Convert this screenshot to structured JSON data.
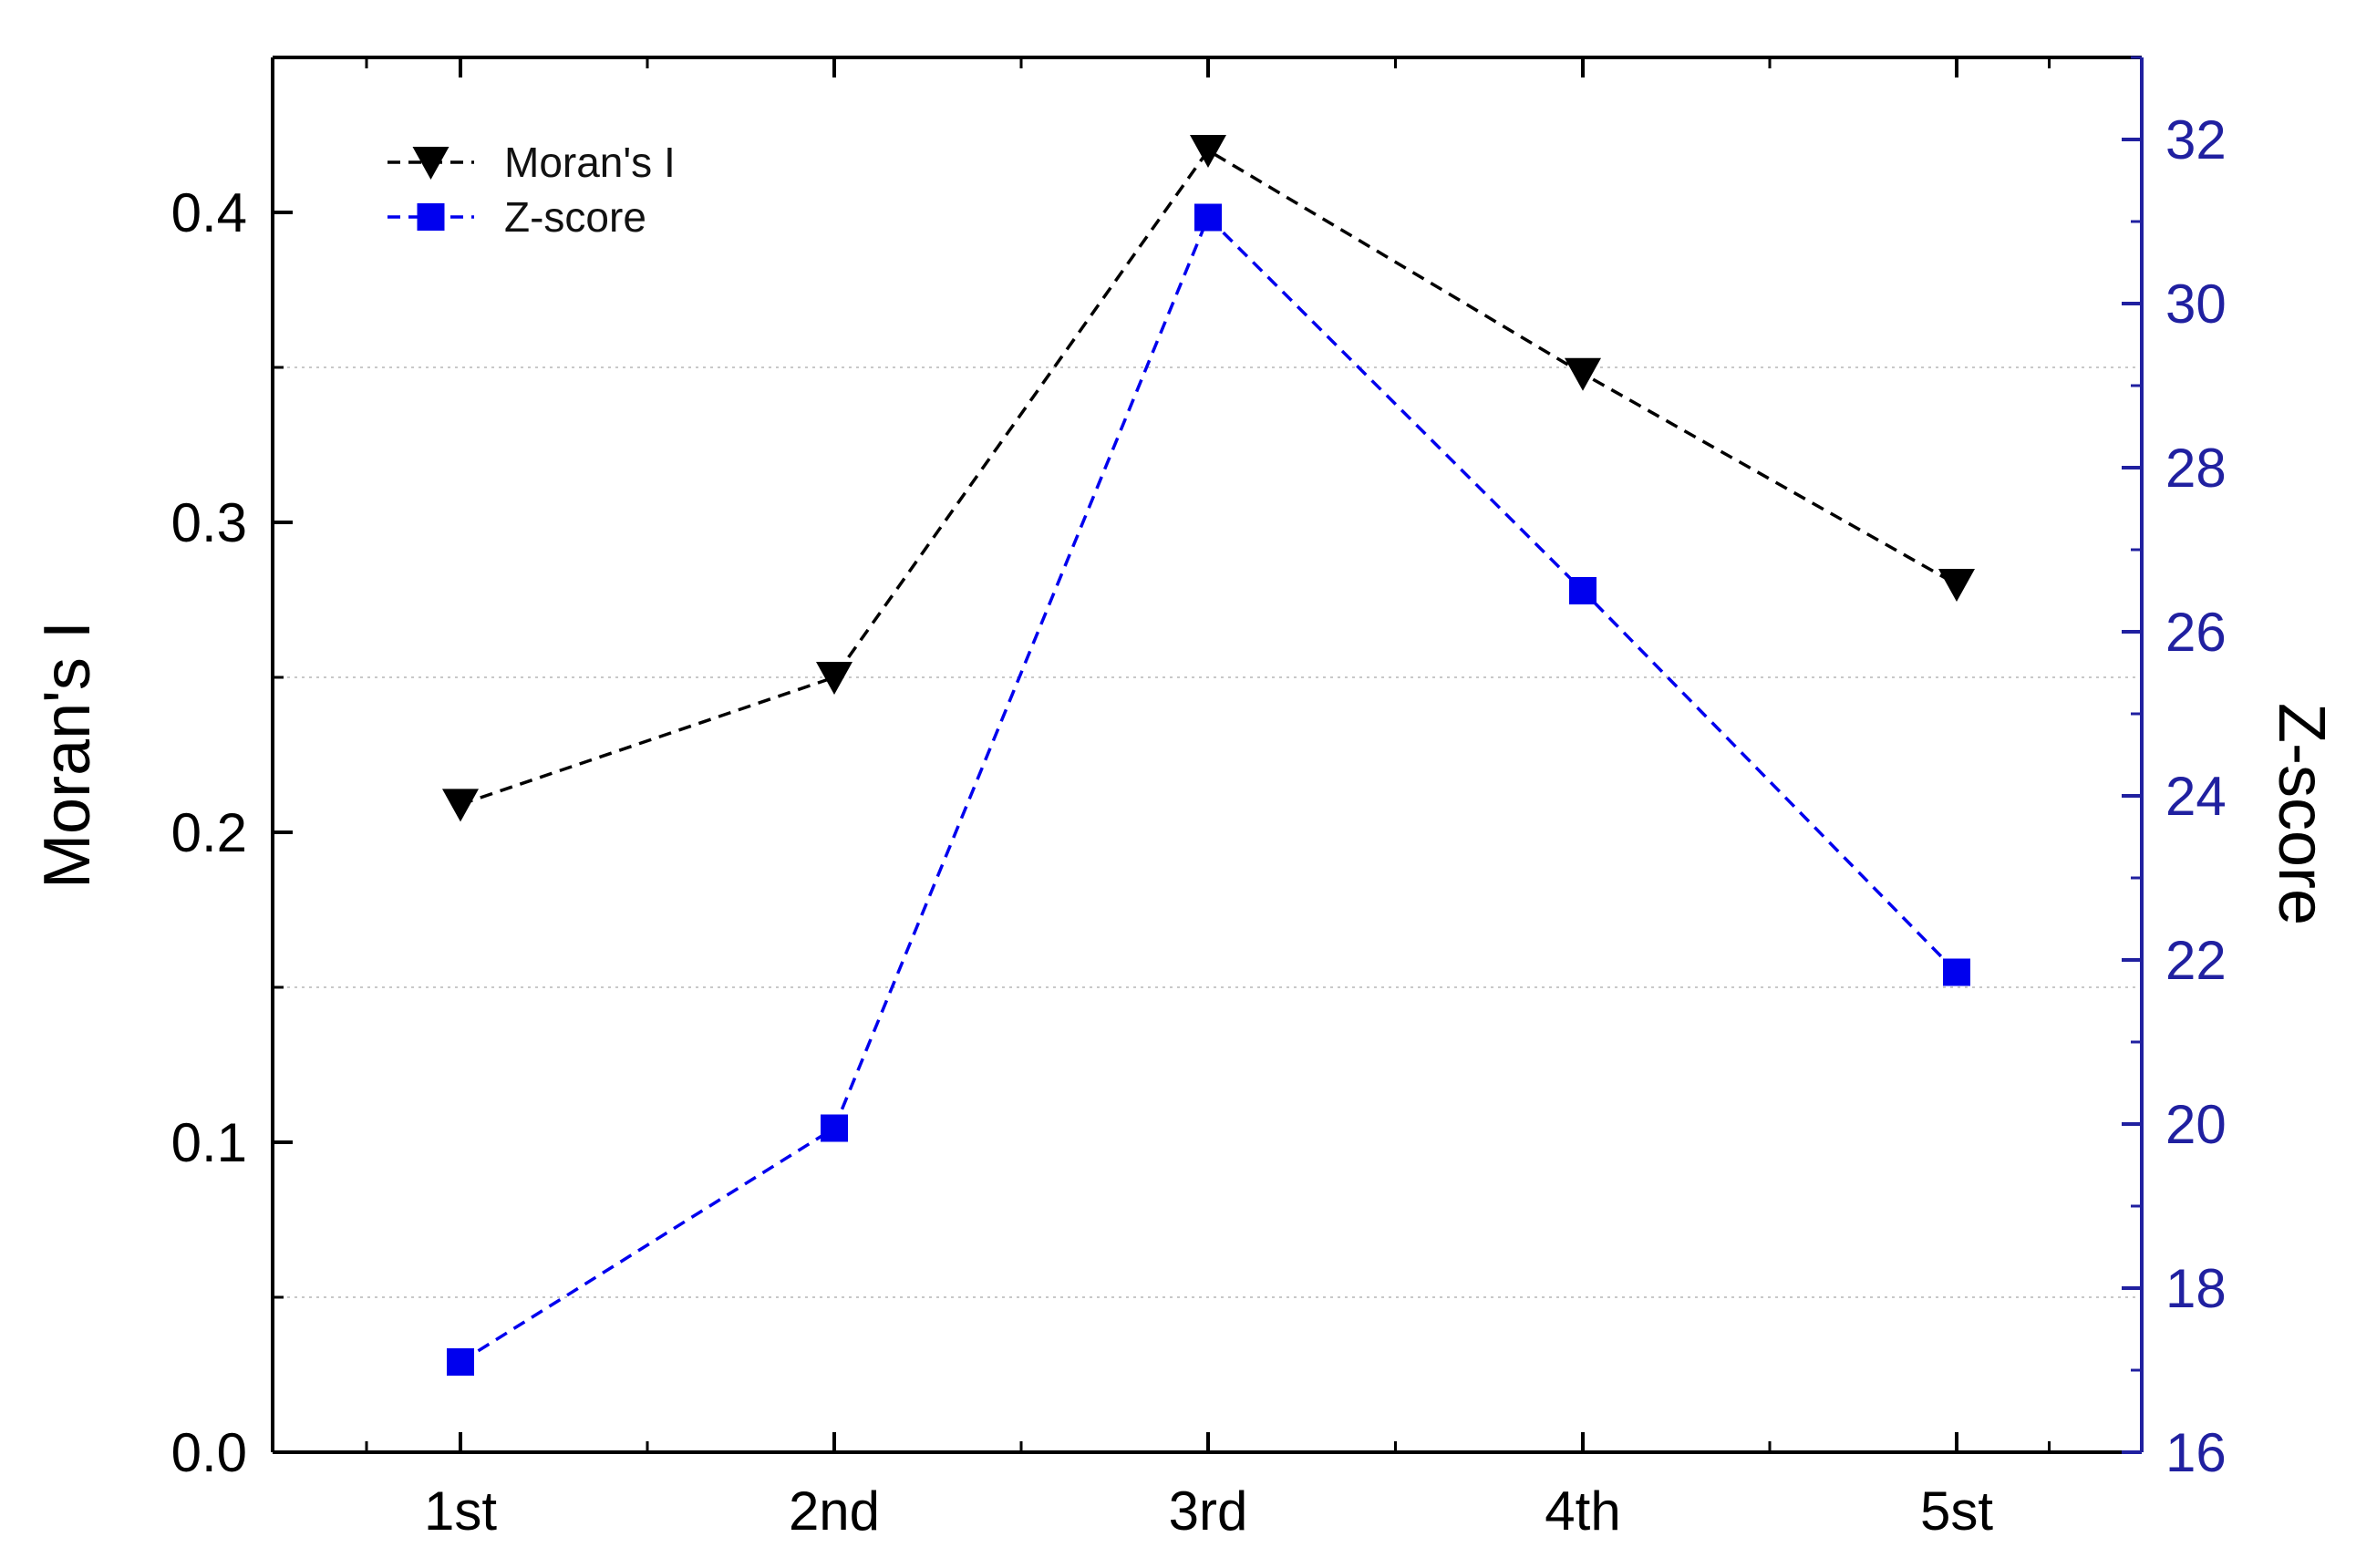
{
  "chart_data": {
    "type": "line",
    "categories": [
      "1st",
      "2nd",
      "3rd",
      "4th",
      "5st"
    ],
    "series": [
      {
        "name": "Moran's I",
        "axis": "left",
        "values": [
          0.209,
          0.25,
          0.42,
          0.348,
          0.28
        ],
        "color": "#000000",
        "marker": "down-triangle",
        "line_style": "dashed"
      },
      {
        "name": "Z-score",
        "axis": "right",
        "values": [
          17.1,
          19.95,
          31.05,
          26.5,
          21.85
        ],
        "color": "#0000ee",
        "marker": "square",
        "line_style": "dashed"
      }
    ],
    "ylabel_left": "Moran's I",
    "ylabel_right": "Z-score",
    "ylim_left": [
      0,
      0.45
    ],
    "ylim_right": [
      16,
      33
    ],
    "yticks_left": [
      "0.0",
      "0.1",
      "0.2",
      "0.3",
      "0.4"
    ],
    "yticks_right": [
      "16",
      "18",
      "20",
      "22",
      "24",
      "26",
      "28",
      "30",
      "32"
    ],
    "grid": "horizontal dotted at minor left ticks",
    "legend_position": "top-left",
    "right_axis_color": "#2020a0"
  }
}
